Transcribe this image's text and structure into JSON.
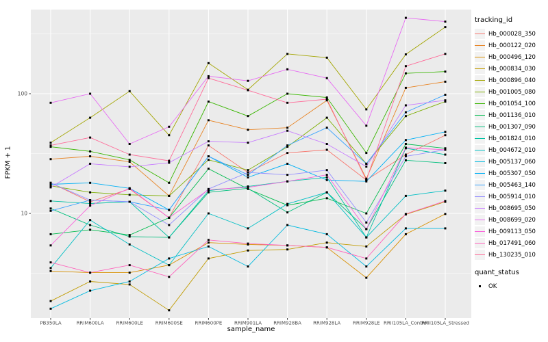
{
  "chart_data": {
    "type": "line",
    "title": "",
    "xlabel": "sample_name",
    "ylabel": "FPKM + 1",
    "y_scale": "log10",
    "ylim": [
      1.3,
      510
    ],
    "y_ticks": [
      {
        "label": "100",
        "value": 100
      },
      {
        "label": "10",
        "value": 10
      }
    ],
    "grid": "on",
    "panel_bg": "#EBEBEB",
    "grid_color": "#FFFFFF",
    "tick_label_color": "#4D4D4D",
    "marker": {
      "shape": "square",
      "color": "#000000"
    },
    "categories": [
      "PB350LA",
      "RRIM600LA",
      "RRIM600LE",
      "RRIM600SE",
      "RRIM600PE",
      "RRIM901LA",
      "RRIM928BA",
      "RRIM928LA",
      "RRIM928LE",
      "RRII105LA_Control",
      "RRII105LA_Stressed"
    ],
    "legend": {
      "title": "tracking_id",
      "position": "right"
    },
    "quant_legend": {
      "title": "quant_status",
      "items": [
        {
          "label": "OK",
          "marker": "black-square"
        }
      ]
    },
    "series": [
      {
        "name": "Hb_000028_350",
        "color": "#F8766D",
        "values": [
          18,
          12.5,
          16,
          9.2,
          37,
          22,
          32,
          34,
          19,
          31,
          45
        ]
      },
      {
        "name": "Hb_000122_020",
        "color": "#E88526",
        "values": [
          28.4,
          30,
          27,
          14,
          60,
          50,
          52,
          88,
          19.5,
          112,
          126
        ]
      },
      {
        "name": "Hb_000496_120",
        "color": "#D89000",
        "values": [
          3.3,
          3.2,
          3.2,
          3.7,
          5.7,
          5.5,
          5.4,
          5.2,
          2.9,
          6.7,
          9.9
        ]
      },
      {
        "name": "Hb_000834_030",
        "color": "#C09B00",
        "values": [
          1.85,
          2.7,
          2.55,
          1.55,
          4.2,
          4.9,
          5.0,
          5.7,
          5.3,
          9.8,
          12.5
        ]
      },
      {
        "name": "Hb_000896_040",
        "color": "#A3A500",
        "values": [
          39,
          63,
          105,
          45,
          180,
          108,
          215,
          200,
          74,
          213,
          360
        ]
      },
      {
        "name": "Hb_001005_080",
        "color": "#7CAE00",
        "values": [
          17,
          15,
          14.3,
          14,
          28,
          23,
          36,
          63,
          26,
          65,
          86
        ]
      },
      {
        "name": "Hb_001054_100",
        "color": "#39B600",
        "values": [
          36,
          33,
          28,
          18,
          86,
          65,
          100,
          93,
          32,
          148,
          153
        ]
      },
      {
        "name": "Hb_001136_010",
        "color": "#00BB4E",
        "values": [
          6.7,
          7.3,
          6.6,
          9.2,
          23.6,
          16,
          11.7,
          13.4,
          10,
          38,
          35
        ]
      },
      {
        "name": "Hb_001307_090",
        "color": "#00BF7D",
        "values": [
          11,
          8,
          6.4,
          6.3,
          15,
          16.2,
          10.2,
          15,
          7.4,
          27.8,
          26.3
        ]
      },
      {
        "name": "Hb_001824_010",
        "color": "#00C1A3",
        "values": [
          12.7,
          12.1,
          12.5,
          6.3,
          15.5,
          16.8,
          18.5,
          20,
          6.3,
          35,
          31
        ]
      },
      {
        "name": "Hb_004672_010",
        "color": "#00BFC4",
        "values": [
          3.5,
          8.8,
          5.5,
          3.7,
          10,
          7.5,
          12,
          15,
          6.3,
          14,
          15.5
        ]
      },
      {
        "name": "Hb_005137_060",
        "color": "#00BAE0",
        "values": [
          1.6,
          2.26,
          2.7,
          4.2,
          5.3,
          3.6,
          8,
          6.7,
          3.6,
          7.5,
          7.5
        ]
      },
      {
        "name": "Hb_005307_050",
        "color": "#00B0F6",
        "values": [
          17.5,
          18,
          16.2,
          10.7,
          30,
          20,
          26,
          19,
          18.5,
          41,
          48
        ]
      },
      {
        "name": "Hb_005463_140",
        "color": "#35A2FF",
        "values": [
          10.5,
          12.9,
          12.5,
          10.7,
          30,
          21,
          37,
          52,
          26,
          70,
          98
        ]
      },
      {
        "name": "Hb_005914_010",
        "color": "#9590FF",
        "values": [
          18,
          12.9,
          12.5,
          8,
          16,
          22,
          21,
          23,
          8.4,
          30,
          34
        ]
      },
      {
        "name": "Hb_008695_050",
        "color": "#C77CFF",
        "values": [
          16.5,
          26,
          24.5,
          26.5,
          40,
          39,
          49,
          38,
          24.6,
          80,
          88
        ]
      },
      {
        "name": "Hb_008699_020",
        "color": "#E76BF3",
        "values": [
          84,
          100,
          38,
          53,
          140,
          128,
          160,
          135,
          54,
          430,
          400
        ]
      },
      {
        "name": "Hb_009113_050",
        "color": "#FA62DB",
        "values": [
          5.4,
          11.6,
          16.2,
          9.2,
          15.8,
          16.5,
          18.5,
          21,
          7.4,
          35.4,
          34
        ]
      },
      {
        "name": "Hb_017491_060",
        "color": "#FF62BC",
        "values": [
          3.9,
          3.2,
          3.7,
          2.95,
          6.0,
          5.6,
          5.4,
          5.2,
          4.2,
          9.9,
          12.7
        ]
      },
      {
        "name": "Hb_130235_010",
        "color": "#FF6A98",
        "values": [
          37,
          43,
          31,
          27.5,
          135,
          107,
          84,
          90,
          19,
          170,
          215
        ]
      }
    ]
  }
}
